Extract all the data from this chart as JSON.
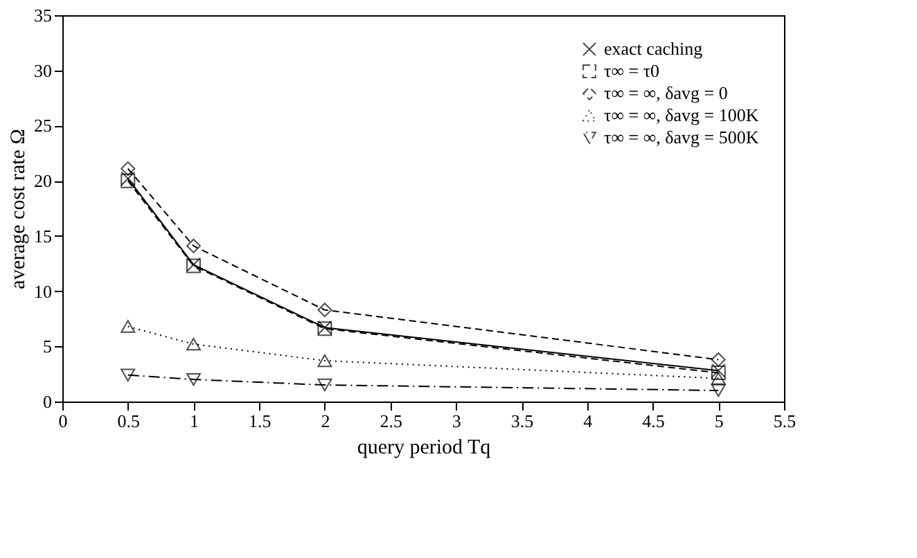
{
  "chart_data": {
    "type": "line",
    "xlabel": "query period Tq",
    "ylabel": "average cost rate Ω",
    "x": [
      0.5,
      1,
      2,
      5
    ],
    "series": [
      {
        "name": "exact caching",
        "color": "#000000",
        "marker": "cross",
        "line_style": "solid",
        "values": [
          20.2,
          12.4,
          6.7,
          2.8
        ]
      },
      {
        "name": "τ∞ = τ0",
        "color": "#000000",
        "marker": "square",
        "line_style": "dashed",
        "values": [
          20.0,
          12.3,
          6.6,
          2.6
        ]
      },
      {
        "name": "τ∞ = ∞, δavg = 0",
        "color": "#000000",
        "marker": "diamond",
        "line_style": "dashed",
        "values": [
          21.1,
          14.1,
          8.3,
          3.8
        ]
      },
      {
        "name": "τ∞ = ∞, δavg = 100K",
        "color": "#000000",
        "marker": "triangle",
        "line_style": "dotted",
        "values": [
          6.8,
          5.2,
          3.7,
          2.1
        ]
      },
      {
        "name": "τ∞ = ∞, δavg = 500K",
        "color": "#000000",
        "marker": "triangle-down",
        "line_style": "dashdot",
        "values": [
          2.4,
          2.0,
          1.5,
          1.0
        ]
      }
    ],
    "xlim": [
      0,
      5.5
    ],
    "xticks": [
      0,
      0.5,
      1,
      1.5,
      2,
      2.5,
      3,
      3.5,
      4,
      4.5,
      5,
      5.5
    ],
    "ylim": [
      0,
      35
    ],
    "yticks": [
      0,
      5,
      10,
      15,
      20,
      25,
      30,
      35
    ],
    "grid": false,
    "legend": "top right"
  }
}
